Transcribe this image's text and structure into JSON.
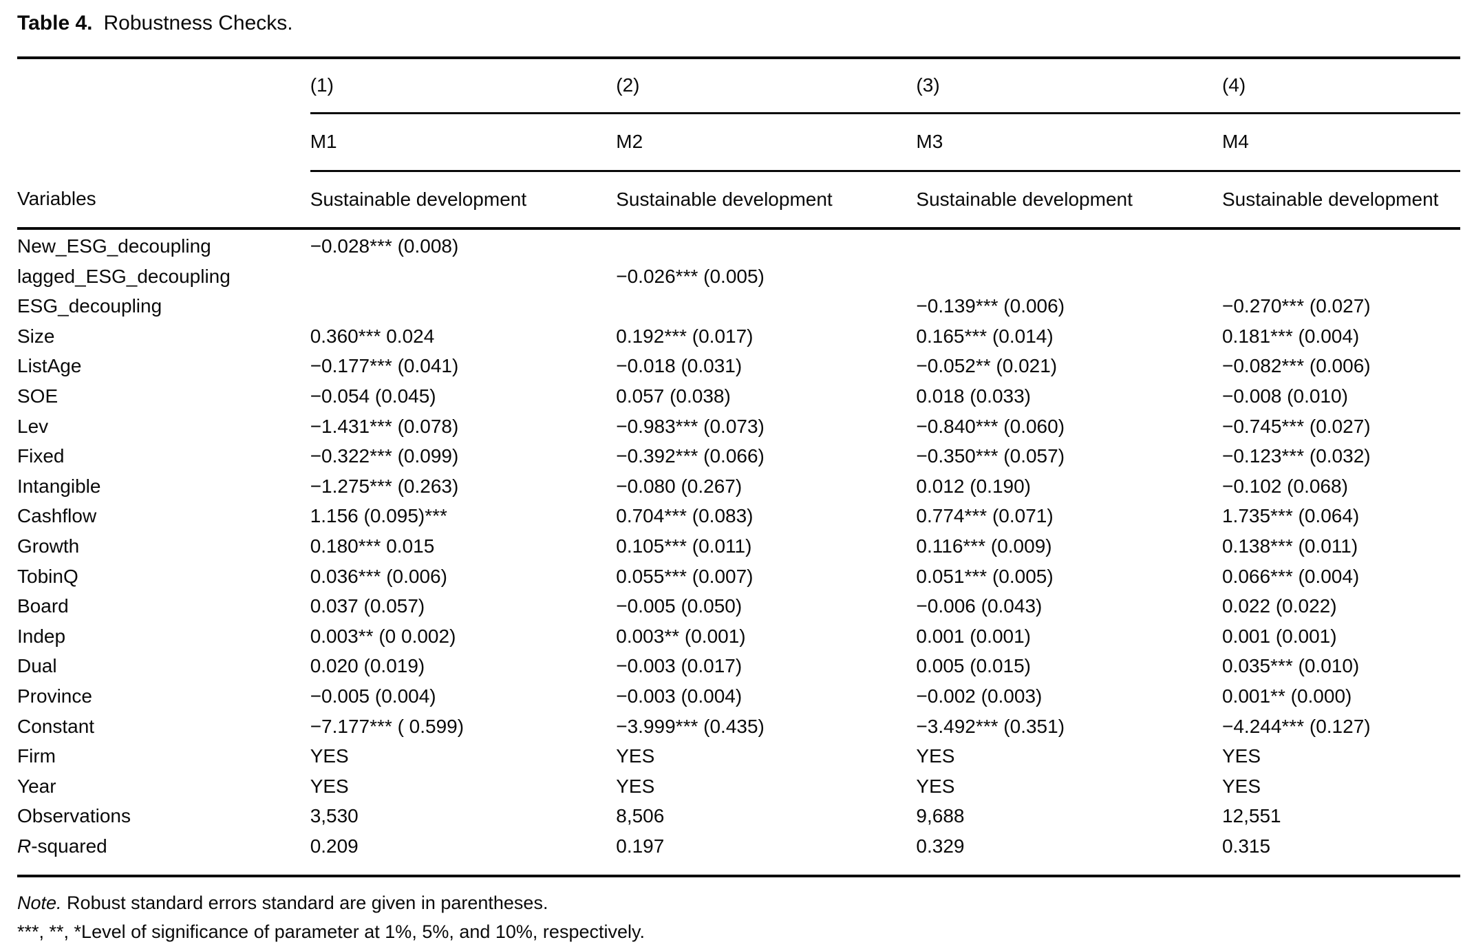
{
  "title": {
    "number": "Table 4.",
    "caption": "Robustness Checks."
  },
  "header": {
    "variables_label": "Variables",
    "model_numbers": [
      "(1)",
      "(2)",
      "(3)",
      "(4)"
    ],
    "model_names": [
      "M1",
      "M2",
      "M3",
      "M4"
    ],
    "dependent_variable": [
      "Sustainable development",
      "Sustainable development",
      "Sustainable development",
      "Sustainable development"
    ]
  },
  "rows": [
    {
      "label": "New_ESG_decoupling",
      "cols": [
        "−0.028*** (0.008)",
        "",
        "",
        ""
      ]
    },
    {
      "label": "lagged_ESG_decoupling",
      "cols": [
        "",
        "−0.026*** (0.005)",
        "",
        ""
      ]
    },
    {
      "label": "ESG_decoupling",
      "cols": [
        "",
        "",
        "−0.139*** (0.006)",
        "−0.270*** (0.027)"
      ]
    },
    {
      "label": "Size",
      "cols": [
        "0.360*** 0.024",
        "0.192*** (0.017)",
        "0.165*** (0.014)",
        "0.181*** (0.004)"
      ]
    },
    {
      "label": "ListAge",
      "cols": [
        "−0.177*** (0.041)",
        "−0.018 (0.031)",
        "−0.052** (0.021)",
        "−0.082*** (0.006)"
      ]
    },
    {
      "label": "SOE",
      "cols": [
        "−0.054 (0.045)",
        "0.057 (0.038)",
        "0.018 (0.033)",
        "−0.008 (0.010)"
      ]
    },
    {
      "label": "Lev",
      "cols": [
        "−1.431*** (0.078)",
        "−0.983*** (0.073)",
        "−0.840*** (0.060)",
        "−0.745*** (0.027)"
      ]
    },
    {
      "label": "Fixed",
      "cols": [
        "−0.322*** (0.099)",
        "−0.392*** (0.066)",
        "−0.350*** (0.057)",
        "−0.123*** (0.032)"
      ]
    },
    {
      "label": "Intangible",
      "cols": [
        "−1.275*** (0.263)",
        "−0.080 (0.267)",
        "0.012 (0.190)",
        "−0.102 (0.068)"
      ]
    },
    {
      "label": "Cashflow",
      "cols": [
        "1.156 (0.095)***",
        "0.704*** (0.083)",
        "0.774*** (0.071)",
        "1.735*** (0.064)"
      ]
    },
    {
      "label": "Growth",
      "cols": [
        "0.180*** 0.015",
        "0.105*** (0.011)",
        "0.116*** (0.009)",
        "0.138*** (0.011)"
      ]
    },
    {
      "label": "TobinQ",
      "cols": [
        "0.036*** (0.006)",
        "0.055*** (0.007)",
        "0.051*** (0.005)",
        "0.066*** (0.004)"
      ]
    },
    {
      "label": "Board",
      "cols": [
        "0.037 (0.057)",
        "−0.005 (0.050)",
        "−0.006 (0.043)",
        "0.022 (0.022)"
      ]
    },
    {
      "label": "Indep",
      "cols": [
        "0.003** (0 0.002)",
        "0.003** (0.001)",
        "0.001 (0.001)",
        "0.001 (0.001)"
      ]
    },
    {
      "label": "Dual",
      "cols": [
        "0.020 (0.019)",
        "−0.003 (0.017)",
        "0.005 (0.015)",
        "0.035*** (0.010)"
      ]
    },
    {
      "label": "Province",
      "cols": [
        "−0.005 (0.004)",
        "−0.003 (0.004)",
        "−0.002 (0.003)",
        "0.001** (0.000)"
      ]
    },
    {
      "label": "Constant",
      "cols": [
        "−7.177*** ( 0.599)",
        "−3.999*** (0.435)",
        "−3.492*** (0.351)",
        "−4.244*** (0.127)"
      ]
    },
    {
      "label": "Firm",
      "cols": [
        "YES",
        "YES",
        "YES",
        "YES"
      ]
    },
    {
      "label": "Year",
      "cols": [
        "YES",
        "YES",
        "YES",
        "YES"
      ]
    },
    {
      "label": "Observations",
      "cols": [
        "3,530",
        "8,506",
        "9,688",
        "12,551"
      ]
    },
    {
      "label_pre": "R",
      "label": "-squared",
      "cols": [
        "0.209",
        "0.197",
        "0.329",
        "0.315"
      ]
    }
  ],
  "footer": {
    "note_italic": "Note.",
    "note_rest": " Robust standard errors standard are given in parentheses.",
    "significance": "***, **, *Level of significance of parameter at 1%, 5%, and 10%, respectively."
  }
}
